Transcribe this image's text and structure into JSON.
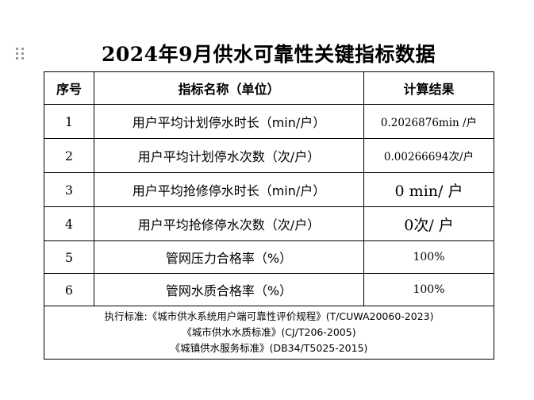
{
  "document": {
    "title": "2024年9月供水可靠性关键指标数据"
  },
  "table": {
    "headers": {
      "index": "序号",
      "name": "指标名称（单位）",
      "result": "计算结果"
    },
    "rows": [
      {
        "index": "1",
        "name": "用户平均计划停水时长（min/户）",
        "result": "0.2026876min /户"
      },
      {
        "index": "2",
        "name": "用户平均计划停水次数（次/户）",
        "result": "0.00266694次/户"
      },
      {
        "index": "3",
        "name": "用户平均抢修停水时长（min/户）",
        "result": "0 min/ 户"
      },
      {
        "index": "4",
        "name": "用户平均抢修停水次数（次/户）",
        "result": "0次/ 户"
      },
      {
        "index": "5",
        "name": "管网压力合格率（%）",
        "result": "100%"
      },
      {
        "index": "6",
        "name": "管网水质合格率（%）",
        "result": "100%"
      }
    ],
    "footer": {
      "line1": "执行标准:《城市供水系统用户端可靠性评价规程》(T/CUWA20060-2023)",
      "line2": "《城市供水水质标准》(CJ/T206-2005)",
      "line3": "《城镇供水服务标准》(DB34/T5025-2015)"
    }
  }
}
